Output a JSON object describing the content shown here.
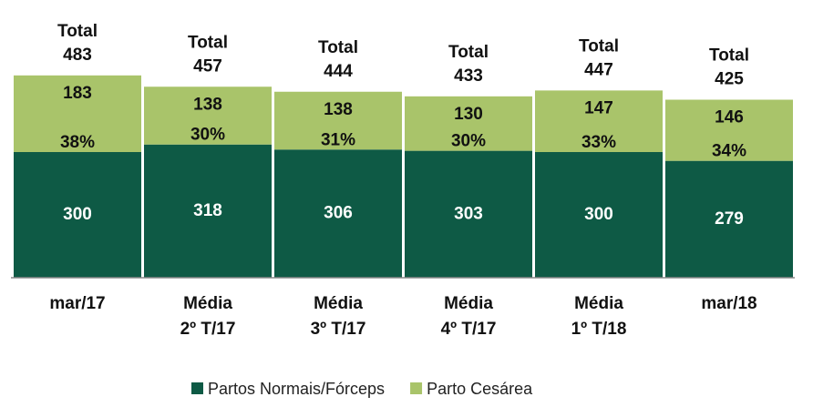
{
  "chart_data": {
    "type": "stacked-bar",
    "categories": [
      [
        "mar/17"
      ],
      [
        "Média",
        "2º T/17"
      ],
      [
        "Média",
        "3º T/17"
      ],
      [
        "Média",
        "4º T/17"
      ],
      [
        "Média",
        "1º T/18"
      ],
      [
        "mar/18"
      ]
    ],
    "series": [
      {
        "name": "Partos Normais/Fórceps",
        "color": "#0e5a45",
        "values": [
          300,
          318,
          306,
          303,
          300,
          279
        ]
      },
      {
        "name": "Parto Cesárea",
        "color": "#a9c46a",
        "values": [
          183,
          138,
          138,
          130,
          147,
          146
        ]
      }
    ],
    "total_label": "Total",
    "totals": [
      483,
      457,
      444,
      433,
      447,
      425
    ],
    "percent_labels": [
      "38%",
      "30%",
      "31%",
      "30%",
      "33%",
      "34%"
    ],
    "legend": "bottom"
  }
}
